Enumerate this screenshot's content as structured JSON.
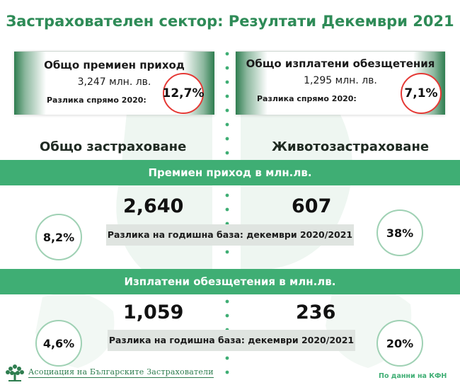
{
  "title": "Застрахователен сектор: Резултати Декември 2021",
  "summary": {
    "premiums": {
      "label": "Общо премиен приход",
      "value": "3,247 млн. лв.",
      "diff_label": "Разлика спрямо 2020:",
      "diff_value": "12,7%"
    },
    "claims": {
      "label": "Общо изплатени обезщетения",
      "value": "1,295  млн. лв.",
      "diff_label": "Разлика спрямо 2020:",
      "diff_value": "7,1%"
    }
  },
  "columns": {
    "general": "Общо застраховане",
    "life": "Животозастраховане"
  },
  "premium_section": {
    "band_title": "Премиен приход в млн.лв.",
    "general_value": "2,640",
    "life_value": "607",
    "diff_caption": "Разлика на годишна база: декември 2020/2021",
    "general_change": "8,2%",
    "life_change": "38%"
  },
  "claims_section": {
    "band_title": "Изплатени обезщетения в млн.лв.",
    "general_value": "1,059",
    "life_value": "236",
    "diff_caption": "Разлика на годишна база: декември 2020/2021",
    "general_change": "4,6%",
    "life_change": "20%"
  },
  "footer": {
    "association": "Асоциация на Българските Застрахователи",
    "source": "По данни на КФН"
  },
  "colors": {
    "accent": "#2e8b57",
    "band": "#3fae74",
    "highlight_circle": "#e53935",
    "change_circle": "#9fd1b4",
    "caption_bar": "#dfe4e0"
  },
  "icons": {
    "logo": "tree-logo-icon",
    "divider": "dotted-divider"
  }
}
